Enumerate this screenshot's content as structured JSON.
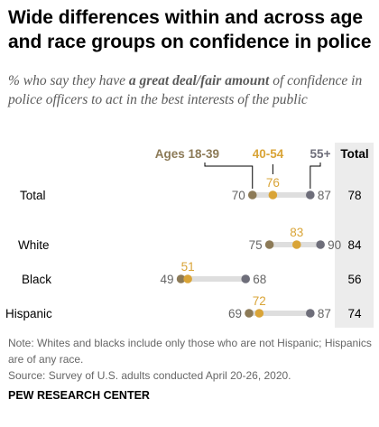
{
  "title": "Wide differences within and across age and race groups on confidence in police",
  "subtitle": {
    "before": "% who say they have ",
    "emphasis": "a great deal/fair amount",
    "after": " of confidence in police officers to act in the best interests of the public"
  },
  "notes": [
    "Note: Whites and blacks include only those who are not Hispanic; Hispanics are of any race.",
    "Source: Survey of U.S. adults conducted April 20-26, 2020."
  ],
  "source_org": "PEW RESEARCH CENTER",
  "colors": {
    "age_18_39": "#8c7a57",
    "age_40_54": "#d9a437",
    "age_55_plus": "#6e6e7a",
    "range_bar": "#dedede",
    "total_column": "#ececec",
    "value_text": "#666666"
  },
  "chart_data": {
    "type": "dot",
    "categories": [
      "Total",
      "White",
      "Black",
      "Hispanic"
    ],
    "series": [
      {
        "name": "Ages 18-39",
        "values": [
          70,
          75,
          49,
          69
        ]
      },
      {
        "name": "40-54",
        "values": [
          76,
          83,
          51,
          72
        ]
      },
      {
        "name": "55+",
        "values": [
          87,
          90,
          68,
          87
        ]
      }
    ],
    "total_header": "Total",
    "totals": [
      78,
      84,
      56,
      74
    ],
    "xlim": [
      30,
      100
    ],
    "grid": false,
    "legend_placement": "top"
  }
}
